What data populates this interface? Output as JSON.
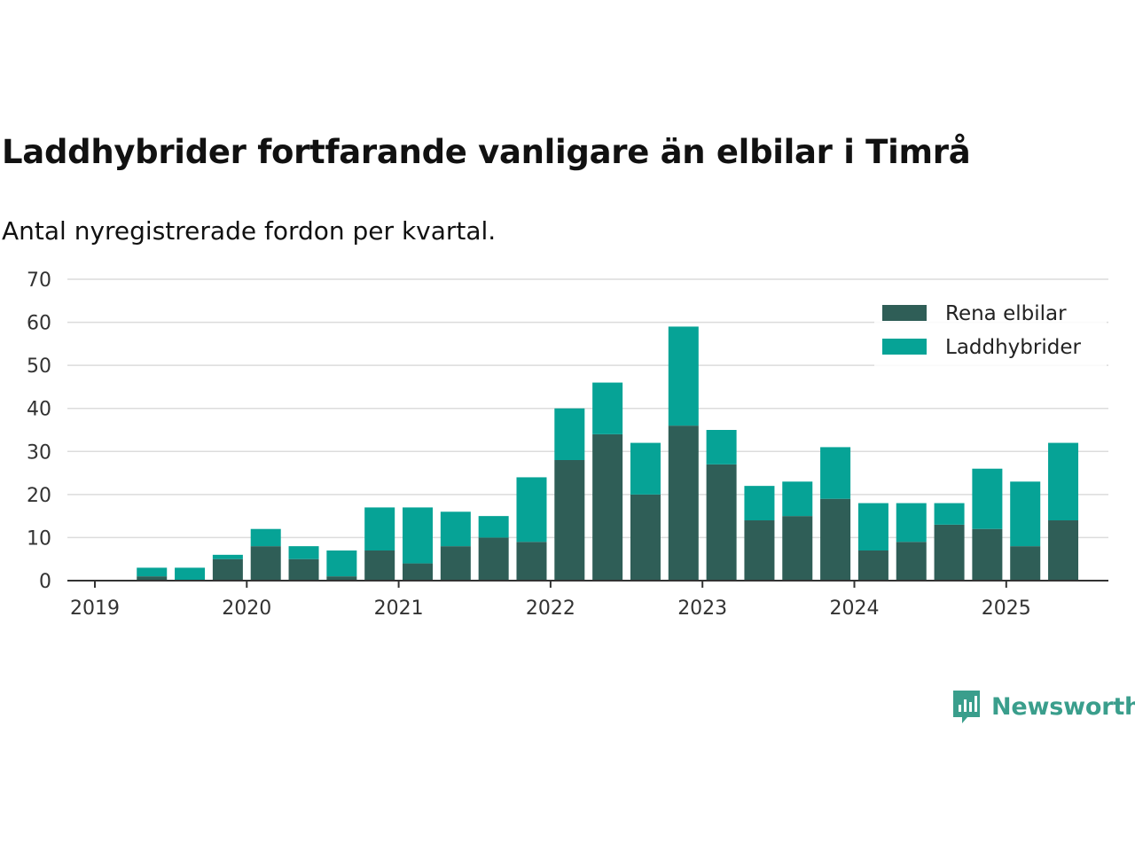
{
  "title": "Laddhybrider fortfarande vanligare än elbilar i Timrå",
  "subtitle": "Antal nyregistrerade fordon per kvartal.",
  "brand": {
    "name": "Newsworthy",
    "icon": "newsworthy-logo-icon"
  },
  "colors": {
    "rena_elbilar": "#2f5e57",
    "laddhybrider": "#06a396",
    "brand": "#3a9e8c"
  },
  "chart_data": {
    "type": "bar",
    "stacked": true,
    "categories": [
      "2019 Q2",
      "2019 Q3",
      "2019 Q4",
      "2020 Q1",
      "2020 Q2",
      "2020 Q3",
      "2020 Q4",
      "2021 Q1",
      "2021 Q2",
      "2021 Q3",
      "2021 Q4",
      "2022 Q1",
      "2022 Q2",
      "2022 Q3",
      "2022 Q4",
      "2023 Q1",
      "2023 Q2",
      "2023 Q3",
      "2023 Q4",
      "2024 Q1",
      "2024 Q2",
      "2024 Q3",
      "2024 Q4",
      "2025 Q1",
      "2025 Q2"
    ],
    "series": [
      {
        "name": "Rena elbilar",
        "color": "#2f5e57",
        "values": [
          1,
          0,
          5,
          8,
          5,
          1,
          7,
          4,
          8,
          10,
          9,
          28,
          34,
          20,
          36,
          27,
          14,
          15,
          19,
          7,
          9,
          13,
          12,
          8,
          14
        ]
      },
      {
        "name": "Laddhybrider",
        "color": "#06a396",
        "values": [
          2,
          3,
          1,
          4,
          3,
          6,
          10,
          13,
          8,
          5,
          15,
          12,
          12,
          12,
          23,
          8,
          8,
          8,
          12,
          11,
          9,
          5,
          14,
          15,
          18
        ]
      }
    ],
    "x_tick_labels": [
      "2019",
      "2020",
      "2021",
      "2022",
      "2023",
      "2024",
      "2025"
    ],
    "y_ticks": [
      0,
      10,
      20,
      30,
      40,
      50,
      60,
      70
    ],
    "ylim": [
      0,
      70
    ],
    "grid": true,
    "legend_position": "top-right"
  }
}
